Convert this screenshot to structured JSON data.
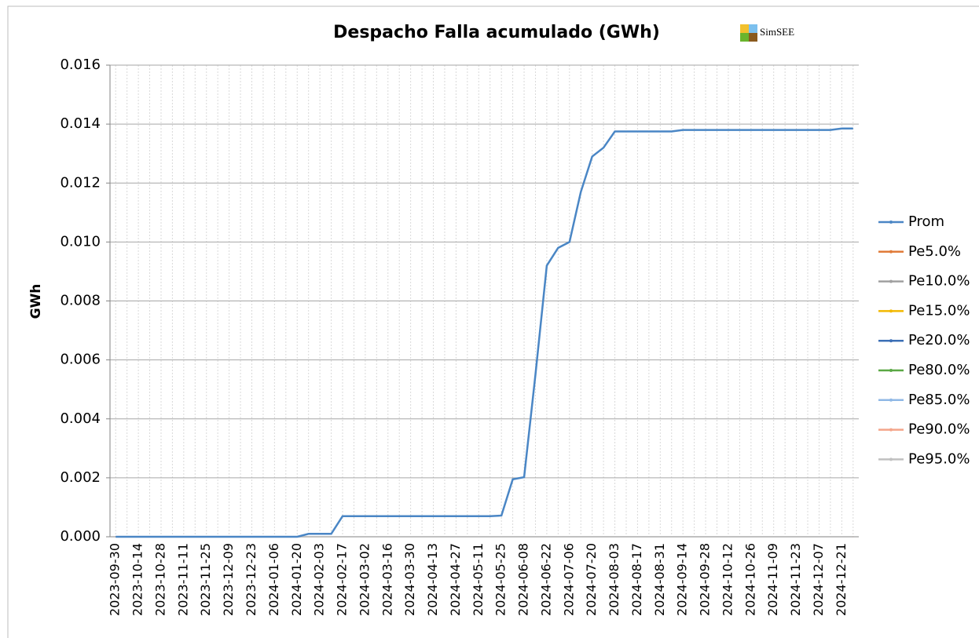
{
  "chart_data": {
    "type": "line",
    "title": "Despacho Falla acumulado (GWh)",
    "logo": "SimSEE",
    "y_label": "GWh",
    "categories": [
      "2023-09-30",
      null,
      "2023-10-14",
      null,
      "2023-10-28",
      null,
      "2023-11-11",
      null,
      "2023-11-25",
      null,
      "2023-12-09",
      null,
      "2023-12-23",
      null,
      "2024-01-06",
      null,
      "2024-01-20",
      null,
      "2024-02-03",
      null,
      "2024-02-17",
      null,
      "2024-03-02",
      null,
      "2024-03-16",
      null,
      "2024-03-30",
      null,
      "2024-04-13",
      null,
      "2024-04-27",
      null,
      "2024-05-11",
      null,
      "2024-05-25",
      null,
      "2024-06-08",
      null,
      "2024-06-22",
      null,
      "2024-07-06",
      null,
      "2024-07-20",
      null,
      "2024-08-03",
      null,
      "2024-08-17",
      null,
      "2024-08-31",
      null,
      "2024-09-14",
      null,
      "2024-09-28",
      null,
      "2024-10-12",
      null,
      "2024-10-26",
      null,
      "2024-11-09",
      null,
      "2024-11-23",
      null,
      "2024-12-07",
      null,
      "2024-12-21",
      null
    ],
    "series": [
      {
        "name": "Prom",
        "color": "#4a86c5",
        "values": [
          0,
          0,
          0,
          0,
          0,
          0,
          0,
          0,
          0,
          0,
          0,
          0,
          0,
          0,
          0,
          0,
          0,
          0.0001,
          0.0001,
          0.0001,
          0.0007,
          0.0007,
          0.0007,
          0.0007,
          0.0007,
          0.0007,
          0.0007,
          0.0007,
          0.0007,
          0.0007,
          0.0007,
          0.0007,
          0.0007,
          0.0007,
          0.00072,
          0.00195,
          0.00202,
          0.0055,
          0.0092,
          0.0098,
          0.01,
          0.0117,
          0.0129,
          0.0132,
          0.01375,
          0.01375,
          0.01375,
          0.01375,
          0.01375,
          0.01375,
          0.0138,
          0.0138,
          0.0138,
          0.0138,
          0.0138,
          0.0138,
          0.0138,
          0.0138,
          0.0138,
          0.0138,
          0.0138,
          0.0138,
          0.0138,
          0.0138,
          0.01385,
          0.01385
        ]
      },
      {
        "name": "Pe5.0%",
        "color": "#e07b39",
        "values": [
          0,
          0,
          0,
          0,
          0,
          0,
          0,
          0,
          0,
          0,
          0,
          0,
          0,
          0,
          0,
          0,
          0,
          0,
          0,
          0,
          0,
          0,
          0,
          0,
          0,
          0,
          0,
          0,
          0,
          0,
          0,
          0,
          0,
          0,
          0,
          0,
          0,
          0,
          0,
          0,
          0,
          0,
          0,
          0,
          0,
          0,
          0,
          0,
          0,
          0,
          0,
          0,
          0,
          0,
          0,
          0,
          0,
          0,
          0,
          0,
          0,
          0,
          0,
          0,
          0,
          0
        ]
      },
      {
        "name": "Pe10.0%",
        "color": "#a0a0a0",
        "values": [
          0,
          0,
          0,
          0,
          0,
          0,
          0,
          0,
          0,
          0,
          0,
          0,
          0,
          0,
          0,
          0,
          0,
          0,
          0,
          0,
          0,
          0,
          0,
          0,
          0,
          0,
          0,
          0,
          0,
          0,
          0,
          0,
          0,
          0,
          0,
          0,
          0,
          0,
          0,
          0,
          0,
          0,
          0,
          0,
          0,
          0,
          0,
          0,
          0,
          0,
          0,
          0,
          0,
          0,
          0,
          0,
          0,
          0,
          0,
          0,
          0,
          0,
          0,
          0,
          0,
          0
        ]
      },
      {
        "name": "Pe15.0%",
        "color": "#f2b800",
        "values": [
          0,
          0,
          0,
          0,
          0,
          0,
          0,
          0,
          0,
          0,
          0,
          0,
          0,
          0,
          0,
          0,
          0,
          0,
          0,
          0,
          0,
          0,
          0,
          0,
          0,
          0,
          0,
          0,
          0,
          0,
          0,
          0,
          0,
          0,
          0,
          0,
          0,
          0,
          0,
          0,
          0,
          0,
          0,
          0,
          0,
          0,
          0,
          0,
          0,
          0,
          0,
          0,
          0,
          0,
          0,
          0,
          0,
          0,
          0,
          0,
          0,
          0,
          0,
          0,
          0,
          0
        ]
      },
      {
        "name": "Pe20.0%",
        "color": "#3b6fb6",
        "values": [
          0,
          0,
          0,
          0,
          0,
          0,
          0,
          0,
          0,
          0,
          0,
          0,
          0,
          0,
          0,
          0,
          0,
          0,
          0,
          0,
          0,
          0,
          0,
          0,
          0,
          0,
          0,
          0,
          0,
          0,
          0,
          0,
          0,
          0,
          0,
          0,
          0,
          0,
          0,
          0,
          0,
          0,
          0,
          0,
          0,
          0,
          0,
          0,
          0,
          0,
          0,
          0,
          0,
          0,
          0,
          0,
          0,
          0,
          0,
          0,
          0,
          0,
          0,
          0,
          0,
          0
        ]
      },
      {
        "name": "Pe80.0%",
        "color": "#5aa845",
        "values": [
          0,
          0,
          0,
          0,
          0,
          0,
          0,
          0,
          0,
          0,
          0,
          0,
          0,
          0,
          0,
          0,
          0,
          0,
          0,
          0,
          0,
          0,
          0,
          0,
          0,
          0,
          0,
          0,
          0,
          0,
          0,
          0,
          0,
          0,
          0,
          0,
          0,
          0,
          0,
          0,
          0,
          0,
          0,
          0,
          0,
          0,
          0,
          0,
          0,
          0,
          0,
          0,
          0,
          0,
          0,
          0,
          0,
          0,
          0,
          0,
          0,
          0,
          0,
          0,
          0,
          0
        ]
      },
      {
        "name": "Pe85.0%",
        "color": "#8fb8e6",
        "values": [
          0,
          0,
          0,
          0,
          0,
          0,
          0,
          0,
          0,
          0,
          0,
          0,
          0,
          0,
          0,
          0,
          0,
          0,
          0,
          0,
          0,
          0,
          0,
          0,
          0,
          0,
          0,
          0,
          0,
          0,
          0,
          0,
          0,
          0,
          0,
          0,
          0,
          0,
          0,
          0,
          0,
          0,
          0,
          0,
          0,
          0,
          0,
          0,
          0,
          0,
          0,
          0,
          0,
          0,
          0,
          0,
          0,
          0,
          0,
          0,
          0,
          0,
          0,
          0,
          0,
          0
        ]
      },
      {
        "name": "Pe90.0%",
        "color": "#f4a58a",
        "values": [
          0,
          0,
          0,
          0,
          0,
          0,
          0,
          0,
          0,
          0,
          0,
          0,
          0,
          0,
          0,
          0,
          0,
          0,
          0,
          0,
          0,
          0,
          0,
          0,
          0,
          0,
          0,
          0,
          0,
          0,
          0,
          0,
          0,
          0,
          0,
          0,
          0,
          0,
          0,
          0,
          0,
          0,
          0,
          0,
          0,
          0,
          0,
          0,
          0,
          0,
          0,
          0,
          0,
          0,
          0,
          0,
          0,
          0,
          0,
          0,
          0,
          0,
          0,
          0,
          0,
          0
        ]
      },
      {
        "name": "Pe95.0%",
        "color": "#c0c0c0",
        "values": [
          0,
          0,
          0,
          0,
          0,
          0,
          0,
          0,
          0,
          0,
          0,
          0,
          0,
          0,
          0,
          0,
          0,
          0,
          0,
          0,
          0,
          0,
          0,
          0,
          0,
          0,
          0,
          0,
          0,
          0,
          0,
          0,
          0,
          0,
          0,
          0,
          0,
          0,
          0,
          0,
          0,
          0,
          0,
          0,
          0,
          0,
          0,
          0,
          0,
          0,
          0,
          0,
          0,
          0,
          0,
          0,
          0,
          0,
          0,
          0,
          0,
          0,
          0,
          0,
          0,
          0
        ]
      }
    ],
    "ylim": [
      0,
      0.016
    ],
    "yticks": [
      {
        "value": 0,
        "label": "0.000"
      },
      {
        "value": 0.002,
        "label": "0.002"
      },
      {
        "value": 0.004,
        "label": "0.004"
      },
      {
        "value": 0.006,
        "label": "0.006"
      },
      {
        "value": 0.008,
        "label": "0.008"
      },
      {
        "value": 0.01,
        "label": "0.010"
      },
      {
        "value": 0.012,
        "label": "0.012"
      },
      {
        "value": 0.014,
        "label": "0.014"
      },
      {
        "value": 0.016,
        "label": "0.016"
      }
    ],
    "grid": true,
    "legend": "right"
  }
}
